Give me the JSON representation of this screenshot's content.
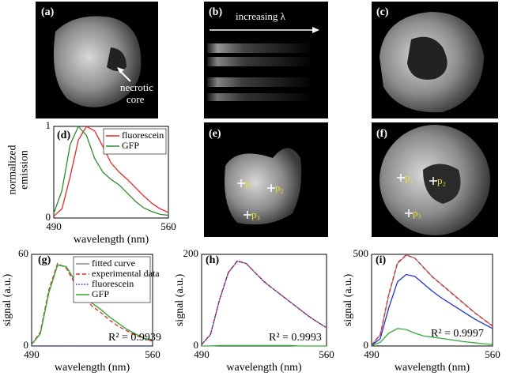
{
  "chart_data": [
    {
      "type": "line",
      "panel": "(d)",
      "xlabel": "wavelength (nm)",
      "ylabel": [
        "normalized",
        "emission"
      ],
      "x": [
        490,
        495,
        500,
        505,
        510,
        515,
        520,
        525,
        530,
        535,
        540,
        545,
        550,
        555,
        560
      ],
      "xlim": [
        490,
        560
      ],
      "xticks": [
        490,
        560
      ],
      "ylim": [
        0,
        1
      ],
      "yticks": [
        0,
        1
      ],
      "legend": "upper right",
      "series": [
        {
          "name": "fluorescein",
          "color": "#e8282a",
          "dash": "solid",
          "values": [
            0.02,
            0.1,
            0.45,
            0.85,
            1.0,
            0.95,
            0.78,
            0.6,
            0.5,
            0.42,
            0.33,
            0.24,
            0.16,
            0.1,
            0.06
          ]
        },
        {
          "name": "GFP",
          "color": "#2e8b2e",
          "dash": "solid",
          "values": [
            0.05,
            0.3,
            0.8,
            1.0,
            0.9,
            0.65,
            0.5,
            0.42,
            0.36,
            0.27,
            0.18,
            0.11,
            0.07,
            0.04,
            0.03
          ]
        }
      ]
    },
    {
      "type": "line",
      "panel": "(g)",
      "xlabel": "wavelength (nm)",
      "ylabel": [
        "signal (a.u.)"
      ],
      "annotation": "R² = 0.9939",
      "x": [
        490,
        495,
        500,
        505,
        510,
        515,
        520,
        525,
        530,
        535,
        540,
        545,
        550,
        555,
        560
      ],
      "xlim": [
        490,
        560
      ],
      "xticks": [
        490,
        560
      ],
      "ylim": [
        0,
        60
      ],
      "yticks": [
        0,
        60
      ],
      "legend": "upper right",
      "series": [
        {
          "name": "fitted curve",
          "color": "#888888",
          "dash": "solid",
          "values": [
            1,
            8,
            35,
            53,
            52,
            43,
            35,
            28,
            24,
            19,
            15,
            11,
            8,
            5,
            4
          ]
        },
        {
          "name": "experimental data",
          "color": "#e8282a",
          "dash": "dashed",
          "values": [
            1,
            9,
            37,
            54,
            51,
            41,
            33,
            26,
            22,
            17,
            13,
            10,
            7,
            5,
            3
          ]
        },
        {
          "name": "fluorescein",
          "color": "#2233cc",
          "dash": "dotted",
          "values": [
            0,
            0,
            0,
            0,
            0,
            0,
            0,
            0,
            0,
            0,
            0,
            0,
            0,
            0,
            0
          ]
        },
        {
          "name": "GFP",
          "color": "#33aa33",
          "dash": "solid",
          "values": [
            1,
            8,
            35,
            53,
            52,
            43,
            35,
            28,
            24,
            19,
            15,
            11,
            8,
            5,
            4
          ]
        }
      ]
    },
    {
      "type": "line",
      "panel": "(h)",
      "xlabel": "wavelength (nm)",
      "ylabel": [
        "signal (a.u.)"
      ],
      "annotation": "R² = 0.9993",
      "x": [
        490,
        495,
        500,
        505,
        510,
        515,
        520,
        525,
        530,
        535,
        540,
        545,
        550,
        555,
        560
      ],
      "xlim": [
        490,
        560
      ],
      "xticks": [
        490,
        560
      ],
      "ylim": [
        0,
        200
      ],
      "yticks": [
        0,
        200
      ],
      "series": [
        {
          "color": "#888888",
          "dash": "solid",
          "values": [
            3,
            25,
            100,
            160,
            185,
            180,
            160,
            140,
            125,
            110,
            95,
            80,
            65,
            52,
            40
          ]
        },
        {
          "color": "#e8282a",
          "dash": "dashed",
          "values": [
            3,
            26,
            101,
            161,
            186,
            180,
            160,
            141,
            125,
            110,
            95,
            80,
            65,
            52,
            40
          ]
        },
        {
          "color": "#2233cc",
          "dash": "dotted",
          "values": [
            3,
            25,
            100,
            160,
            185,
            180,
            160,
            140,
            125,
            110,
            95,
            80,
            65,
            52,
            40
          ]
        },
        {
          "color": "#33aa33",
          "dash": "solid",
          "values": [
            0,
            0,
            1,
            1,
            1,
            1,
            1,
            1,
            1,
            1,
            1,
            0,
            0,
            0,
            0
          ]
        }
      ]
    },
    {
      "type": "line",
      "panel": "(i)",
      "xlabel": "wavelength (nm)",
      "ylabel": [
        "signal (a.u.)"
      ],
      "annotation": "R² = 0.9997",
      "x": [
        490,
        495,
        500,
        505,
        510,
        515,
        520,
        525,
        530,
        535,
        540,
        545,
        550,
        555,
        560
      ],
      "xlim": [
        490,
        560
      ],
      "xticks": [
        490,
        560
      ],
      "ylim": [
        0,
        500
      ],
      "yticks": [
        0,
        500
      ],
      "series": [
        {
          "color": "#888888",
          "dash": "solid",
          "values": [
            5,
            60,
            280,
            450,
            495,
            480,
            430,
            380,
            340,
            300,
            260,
            220,
            180,
            145,
            110
          ]
        },
        {
          "color": "#e8282a",
          "dash": "dashed",
          "values": [
            5,
            62,
            285,
            455,
            497,
            480,
            428,
            378,
            338,
            298,
            258,
            218,
            178,
            143,
            108
          ]
        },
        {
          "color": "#2233cc",
          "dash": "solid",
          "values": [
            3,
            40,
            210,
            350,
            390,
            380,
            340,
            300,
            265,
            235,
            205,
            175,
            145,
            120,
            95
          ]
        },
        {
          "color": "#33aa33",
          "dash": "solid",
          "values": [
            2,
            20,
            70,
            95,
            90,
            70,
            55,
            48,
            42,
            35,
            28,
            22,
            17,
            12,
            8
          ]
        }
      ]
    }
  ],
  "images": [
    {
      "label": "(a)",
      "annotation": [
        "necrotic",
        "core"
      ]
    },
    {
      "label": "(b)",
      "annotation": [
        "increasing λ"
      ]
    },
    {
      "label": "(c)"
    },
    {
      "label": "(e)",
      "points": [
        "p₁",
        "p₂",
        "p₃"
      ]
    },
    {
      "label": "(f)",
      "points": [
        "p₁",
        "p₂",
        "p₃"
      ]
    }
  ]
}
